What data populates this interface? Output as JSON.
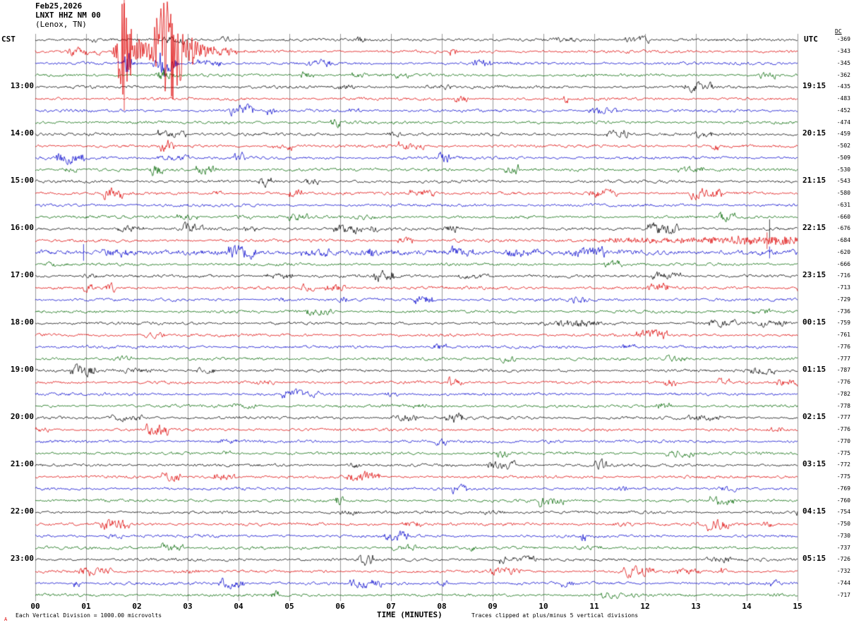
{
  "title": {
    "date": "Feb25,2026",
    "station": "LNXT HHZ NM 00",
    "location": "(Lenox, TN)"
  },
  "axes": {
    "left_header": "CST",
    "right_header": "UTC",
    "dc_header": "DC",
    "x_title": "TIME (MINUTES)",
    "x_ticks": [
      "00",
      "01",
      "02",
      "03",
      "04",
      "05",
      "06",
      "07",
      "08",
      "09",
      "10",
      "11",
      "12",
      "13",
      "14",
      "15"
    ]
  },
  "footer": {
    "marker": "A",
    "left_note": "Each Vertical Division = 1000.00 microvolts",
    "right_note": "Traces clipped at plus/minus 5 vertical divisions"
  },
  "colors": {
    "background": "#ffffff",
    "grid": "#999999",
    "text": "#000000",
    "trace_cycle": [
      "#000000",
      "#dd0000",
      "#0000cc",
      "#006600"
    ]
  },
  "chart_data": {
    "type": "line",
    "subtype": "helicorder_seismogram",
    "rows": 48,
    "minutes_per_row": 15,
    "start_time_cst": "12:00",
    "x_range_minutes": [
      0,
      15
    ],
    "clip_divisions": 5,
    "microvolts_per_division": 1000.0,
    "hour_rows": [
      4,
      8,
      12,
      16,
      20,
      24,
      28,
      32,
      36,
      40,
      44
    ],
    "cst_labels": [
      "13:00",
      "14:00",
      "15:00",
      "16:00",
      "17:00",
      "18:00",
      "19:00",
      "20:00",
      "21:00",
      "22:00",
      "23:00"
    ],
    "utc_labels": [
      "19:15",
      "20:15",
      "21:15",
      "22:15",
      "23:15",
      "00:15",
      "01:15",
      "02:15",
      "03:15",
      "04:15",
      "05:15"
    ],
    "dc_offsets": [
      -369,
      -343,
      -345,
      -362,
      -435,
      -483,
      -452,
      -474,
      -459,
      -502,
      -509,
      -530,
      -543,
      -580,
      -631,
      -660,
      -676,
      -684,
      -620,
      -666,
      -716,
      -713,
      -729,
      -736,
      -759,
      -761,
      -776,
      -777,
      -787,
      -776,
      -782,
      -778,
      -777,
      -776,
      -770,
      -775,
      -772,
      -775,
      -769,
      -760,
      -754,
      -750,
      -730,
      -737,
      -726,
      -732,
      -744,
      -717
    ],
    "events": [
      {
        "type": "burst",
        "row": 1,
        "description": "Large clipped seismic event on the 12:15 CST red trace, minutes ~1.6-3.3",
        "peaks": [
          {
            "min": 1.75,
            "amp_div": 5.0,
            "width": 0.13
          },
          {
            "min": 2.05,
            "amp_div": 1.2,
            "width": 0.15
          },
          {
            "min": 2.5,
            "amp_div": 4.5,
            "width": 0.18
          },
          {
            "min": 2.78,
            "amp_div": 3.2,
            "width": 0.15
          },
          {
            "min": 3.1,
            "amp_div": 0.9,
            "width": 0.25
          },
          {
            "min": 3.6,
            "amp_div": 0.3,
            "width": 0.4
          }
        ]
      },
      {
        "type": "spike",
        "row": 1,
        "min": 1.75,
        "amp_div": 5.0,
        "description": "full-scale spike at event onset"
      },
      {
        "type": "burst",
        "row": 2,
        "description": "coincident disturbance on 12:30 CST blue trace",
        "peaks": [
          {
            "min": 1.8,
            "amp_div": 0.9,
            "width": 0.1
          },
          {
            "min": 2.55,
            "amp_div": 1.1,
            "width": 0.18
          }
        ]
      },
      {
        "type": "burst",
        "row": 3,
        "description": "minor disturbance on 12:45 CST green trace",
        "peaks": [
          {
            "min": 2.55,
            "amp_div": 0.5,
            "width": 0.15
          }
        ]
      },
      {
        "type": "spike",
        "row": 16,
        "min": 14.45,
        "amp_div": 0.8,
        "description": "small spike near minute 14.4 on 16:00 CST black trace"
      },
      {
        "type": "burst",
        "row": 17,
        "description": "elevated noise minutes ~11-15 on 16:15 CST red trace",
        "peaks": [
          {
            "min": 12.0,
            "amp_div": 0.22,
            "width": 1.1
          },
          {
            "min": 13.9,
            "amp_div": 0.3,
            "width": 0.8
          },
          {
            "min": 14.8,
            "amp_div": 0.28,
            "width": 0.4
          }
        ]
      },
      {
        "type": "spike",
        "row": 17,
        "min": 14.4,
        "amp_div": 0.7
      },
      {
        "type": "level",
        "row": 18,
        "factor": 1.8,
        "description": "elevated background noise across 16:30 CST blue trace"
      },
      {
        "type": "spike",
        "row": 18,
        "min": 0.95,
        "amp_div": 0.7
      },
      {
        "type": "spike",
        "row": 18,
        "min": 14.45,
        "amp_div": 0.5
      },
      {
        "type": "burst",
        "row": 24,
        "description": "slightly elevated noise near minute 10.7 on 18:00 CST black trace",
        "peaks": [
          {
            "min": 10.7,
            "amp_div": 0.25,
            "width": 0.6
          }
        ]
      }
    ]
  }
}
